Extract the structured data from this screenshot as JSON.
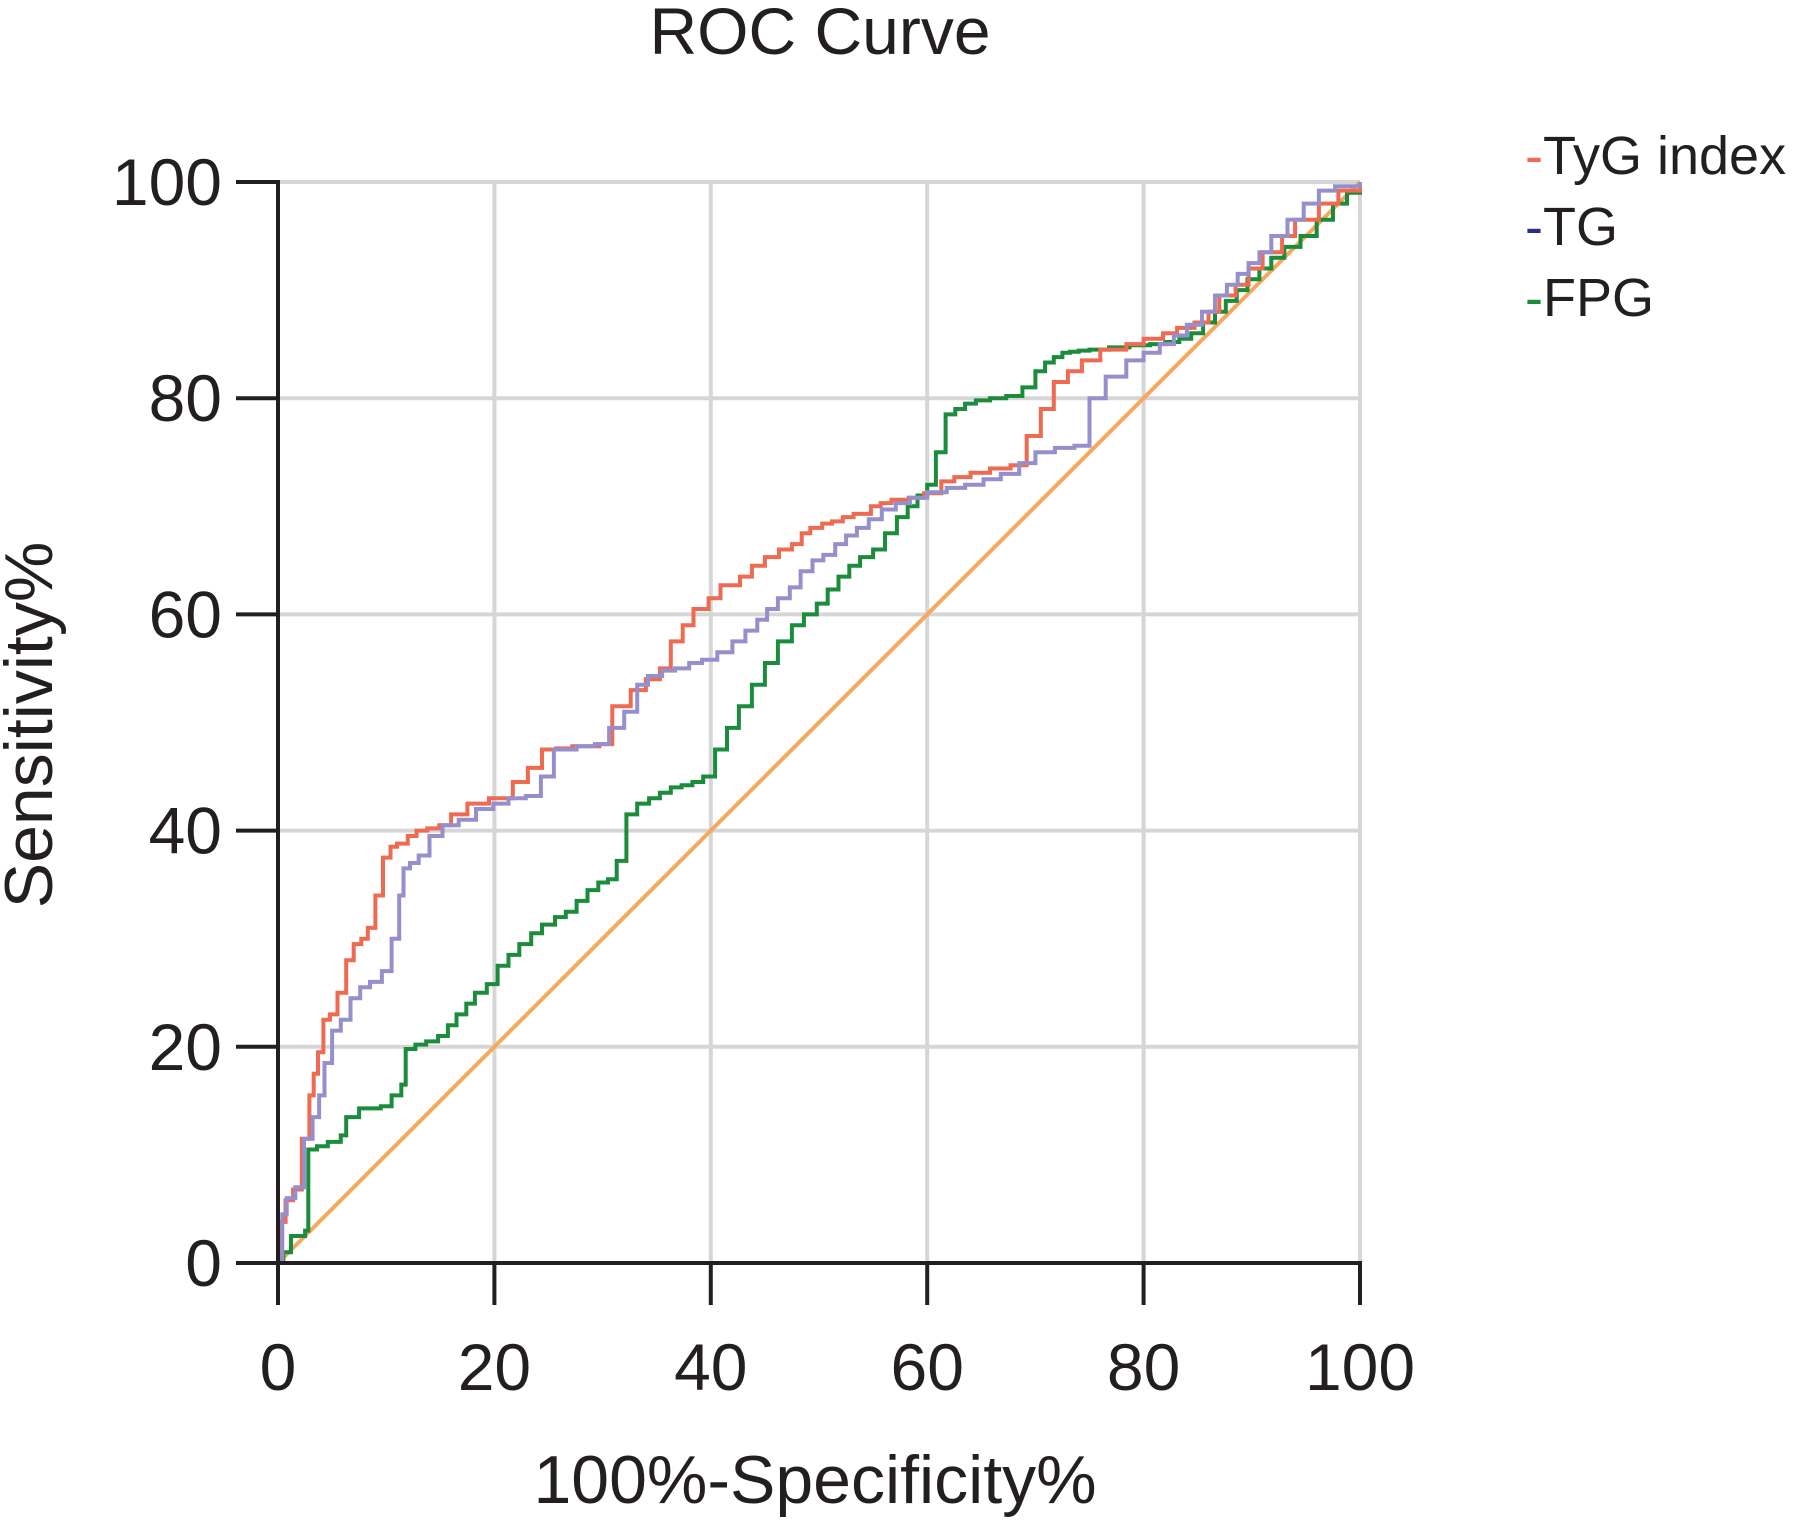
{
  "chart_data": {
    "type": "line",
    "title": "ROC Curve",
    "xlabel": "100%-Specificity%",
    "ylabel": "Sensitivity%",
    "xlim": [
      0,
      100
    ],
    "ylim": [
      0,
      100
    ],
    "x_ticks": [
      "0",
      "20",
      "40",
      "60",
      "80",
      "100"
    ],
    "y_ticks": [
      "0",
      "20",
      "40",
      "60",
      "80",
      "100"
    ],
    "grid": true,
    "legend_position": "top-right",
    "reference_line": {
      "name": "reference",
      "color": "#f7a85a",
      "x": [
        0,
        100
      ],
      "y": [
        0,
        100
      ]
    },
    "series": [
      {
        "name": "TyG index",
        "legend_label": "-TyG index",
        "color": "#ee6a50",
        "x": [
          0,
          0.3,
          0.7,
          1.4,
          2.2,
          2.9,
          3.3,
          3.7,
          4.2,
          4.8,
          5.5,
          6.3,
          7.0,
          7.7,
          8.3,
          9.0,
          9.7,
          10.4,
          11.0,
          11.4,
          12.0,
          12.8,
          13.8,
          14.9,
          16.0,
          17.5,
          19.5,
          21.7,
          23.1,
          24.4,
          25.7,
          27.2,
          29.7,
          30.9,
          32.6,
          34.0,
          35.3,
          36.3,
          37.4,
          38.4,
          39.8,
          40.9,
          42.7,
          43.8,
          45.0,
          46.3,
          47.5,
          48.4,
          49.2,
          50.3,
          51.2,
          52.2,
          53.2,
          54.8,
          55.7,
          56.7,
          58.3,
          59.7,
          61.3,
          62.5,
          64.0,
          65.8,
          67.7,
          69.2,
          70.5,
          71.7,
          73.0,
          74.3,
          76.0,
          78.4,
          80.0,
          81.8,
          83.1,
          84.7,
          86.0,
          87.0,
          88.5,
          89.7,
          91.0,
          92.8,
          94.0,
          96.2,
          98.0,
          100
        ],
        "y": [
          0,
          3.8,
          5.8,
          6.8,
          11.5,
          15.5,
          17.5,
          19.5,
          22.5,
          23.0,
          25.0,
          28.0,
          29.5,
          30.0,
          31.0,
          34.0,
          37.5,
          38.5,
          38.8,
          38.8,
          39.5,
          40.0,
          40.2,
          40.5,
          41.5,
          42.5,
          43.0,
          44.5,
          45.8,
          47.5,
          47.6,
          47.8,
          48.0,
          51.5,
          53.0,
          54.0,
          55.0,
          57.5,
          59.0,
          60.5,
          61.5,
          62.7,
          63.5,
          64.5,
          65.3,
          66.0,
          66.5,
          67.5,
          68.0,
          68.4,
          68.6,
          69.0,
          69.3,
          70.0,
          70.3,
          70.6,
          70.8,
          71.2,
          72.3,
          72.7,
          73.1,
          73.5,
          73.8,
          76.5,
          79.0,
          81.5,
          82.5,
          83.5,
          84.5,
          85.0,
          85.5,
          86.0,
          86.5,
          87.0,
          88.0,
          89.5,
          90.5,
          92.0,
          93.5,
          95.0,
          96.5,
          98.0,
          99.2,
          100
        ]
      },
      {
        "name": "TG",
        "legend_label": "-TG",
        "color": "#958fcc",
        "legend_color": "#2d2d8c",
        "x": [
          0,
          0.4,
          0.8,
          1.6,
          2.4,
          3.2,
          3.8,
          4.3,
          5.0,
          5.8,
          6.7,
          7.6,
          8.5,
          9.6,
          10.5,
          11.2,
          11.6,
          12.2,
          13.0,
          14.0,
          15.2,
          16.7,
          18.3,
          19.9,
          21.3,
          22.9,
          24.3,
          25.5,
          27.6,
          29.3,
          30.6,
          32.0,
          33.2,
          34.2,
          35.5,
          36.7,
          38.0,
          39.2,
          40.6,
          42.0,
          43.2,
          44.3,
          45.2,
          46.2,
          47.3,
          48.3,
          49.4,
          50.4,
          51.5,
          52.5,
          53.5,
          54.6,
          55.8,
          57.1,
          58.4,
          60.0,
          61.8,
          63.5,
          65.2,
          66.8,
          68.5,
          70.0,
          71.8,
          73.6,
          75.0,
          76.5,
          78.4,
          80.0,
          81.5,
          82.8,
          84.0,
          85.4,
          86.6,
          87.7,
          88.7,
          89.7,
          90.7,
          91.8,
          93.3,
          94.8,
          96.2,
          97.7,
          100
        ],
        "y": [
          0,
          4.5,
          6.0,
          7.0,
          11.5,
          13.5,
          15.5,
          18.5,
          21.5,
          22.5,
          24.5,
          25.5,
          26.0,
          27.0,
          30.0,
          34.0,
          36.5,
          37.0,
          37.7,
          39.5,
          40.5,
          41.0,
          42.0,
          42.5,
          43.0,
          43.2,
          45.0,
          47.5,
          47.8,
          48.0,
          49.5,
          51.0,
          53.5,
          54.3,
          54.8,
          55.0,
          55.5,
          55.8,
          56.5,
          57.5,
          58.5,
          59.5,
          60.5,
          61.5,
          62.5,
          64.0,
          65.0,
          65.5,
          66.5,
          67.3,
          68.0,
          68.8,
          69.7,
          70.3,
          70.8,
          71.3,
          71.7,
          72.0,
          72.5,
          73.0,
          74.0,
          75.0,
          75.4,
          75.6,
          80.0,
          82.0,
          83.5,
          84.2,
          85.0,
          85.8,
          86.8,
          88.0,
          89.5,
          90.5,
          91.5,
          92.5,
          93.5,
          95.0,
          96.5,
          98.0,
          99.2,
          99.6,
          100
        ]
      },
      {
        "name": "FPG",
        "legend_label": "-FPG",
        "color": "#1a8c3c",
        "x": [
          0,
          0.5,
          1.2,
          2.5,
          2.8,
          3.6,
          4.6,
          5.8,
          6.3,
          7.5,
          9.5,
          10.5,
          11.4,
          11.8,
          12.7,
          13.7,
          14.8,
          15.7,
          16.5,
          17.4,
          18.2,
          19.3,
          20.3,
          21.3,
          22.3,
          23.4,
          24.4,
          25.6,
          26.6,
          27.6,
          28.6,
          29.6,
          30.5,
          31.3,
          32.2,
          33.2,
          34.3,
          35.3,
          36.3,
          37.3,
          38.3,
          39.3,
          40.4,
          41.5,
          42.6,
          43.8,
          45.0,
          46.2,
          47.5,
          48.6,
          49.8,
          50.8,
          51.8,
          52.8,
          53.8,
          55.0,
          56.1,
          57.2,
          58.2,
          59.1,
          60.0,
          60.8,
          61.7,
          62.6,
          63.5,
          64.5,
          65.8,
          67.3,
          68.8,
          70.0,
          70.9,
          71.7,
          72.5,
          73.2,
          74.0,
          75.0,
          76.8,
          78.7,
          80.6,
          82.0,
          83.3,
          84.4,
          85.5,
          86.6,
          87.6,
          88.6,
          89.6,
          90.7,
          91.8,
          93.0,
          94.5,
          96.0,
          97.5,
          98.8,
          100
        ],
        "y": [
          0,
          1.0,
          2.5,
          3.0,
          10.5,
          10.8,
          11.2,
          11.8,
          13.5,
          14.3,
          14.5,
          15.5,
          16.5,
          19.8,
          20.2,
          20.5,
          21.0,
          22.0,
          23.0,
          24.0,
          25.0,
          25.8,
          27.5,
          28.5,
          29.5,
          30.5,
          31.3,
          32.0,
          32.5,
          33.5,
          34.5,
          35.2,
          35.5,
          37.2,
          41.5,
          42.5,
          43.0,
          43.5,
          44.0,
          44.2,
          44.5,
          45.0,
          47.5,
          49.5,
          51.5,
          53.5,
          55.5,
          57.5,
          59.0,
          60.0,
          61.0,
          62.3,
          63.5,
          64.5,
          65.3,
          66.0,
          67.5,
          69.0,
          70.0,
          71.0,
          72.0,
          75.0,
          78.5,
          79.0,
          79.5,
          79.8,
          80.0,
          80.2,
          81.0,
          82.5,
          83.3,
          83.8,
          84.2,
          84.3,
          84.4,
          84.5,
          84.7,
          84.9,
          85.0,
          85.2,
          85.5,
          86.0,
          87.0,
          88.0,
          89.0,
          90.0,
          91.0,
          92.0,
          93.0,
          94.0,
          95.0,
          96.5,
          98.0,
          99.0,
          100
        ]
      }
    ]
  }
}
